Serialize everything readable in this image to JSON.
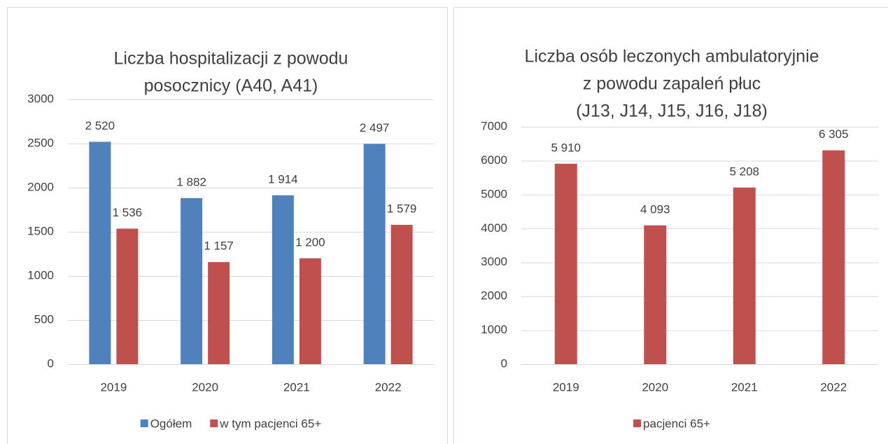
{
  "chart_data": [
    {
      "type": "bar",
      "title": [
        "Liczba hospitalizacji z powodu",
        "posocznicy (A40, A41)"
      ],
      "categories": [
        "2019",
        "2020",
        "2021",
        "2022"
      ],
      "series": [
        {
          "name": "Ogółem",
          "color": "#4f81bd",
          "values": [
            2520,
            1882,
            1914,
            2497
          ],
          "value_labels": [
            "2 520",
            "1 882",
            "1 914",
            "2 497"
          ]
        },
        {
          "name": "w tym pacjenci 65+",
          "color": "#c0504d",
          "values": [
            1536,
            1157,
            1200,
            1579
          ],
          "value_labels": [
            "1 536",
            "1 157",
            "1 200",
            "1 579"
          ]
        }
      ],
      "ylim": [
        0,
        3000
      ],
      "yticks": [
        0,
        500,
        1000,
        1500,
        2000,
        2500,
        3000
      ],
      "grid": true,
      "legend": "bottom"
    },
    {
      "type": "bar",
      "title": [
        "Liczba osób leczonych ambulatoryjnie",
        "z powodu zapaleń płuc",
        "(J13, J14, J15, J16, J18)"
      ],
      "categories": [
        "2019",
        "2020",
        "2021",
        "2022"
      ],
      "series": [
        {
          "name": "pacjenci 65+",
          "color": "#c0504d",
          "values": [
            5910,
            4093,
            5208,
            6305
          ],
          "value_labels": [
            "5 910",
            "4 093",
            "5 208",
            "6 305"
          ]
        }
      ],
      "ylim": [
        0,
        7000
      ],
      "yticks": [
        0,
        1000,
        2000,
        3000,
        4000,
        5000,
        6000,
        7000
      ],
      "grid": true,
      "legend": "bottom"
    }
  ]
}
